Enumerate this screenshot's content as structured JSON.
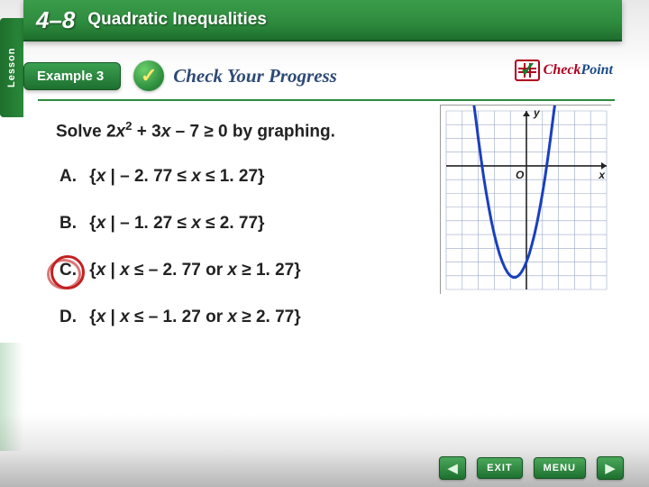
{
  "lesson": {
    "tab": "Lesson",
    "number": "4–8",
    "title": "Quadratic Inequalities"
  },
  "example": {
    "label": "Example 3",
    "cyp": "Check Your Progress"
  },
  "checkpoint": {
    "check": "Check",
    "point": "Point"
  },
  "question": {
    "prefix": "Solve 2",
    "var1": "x",
    "exp": "2",
    "mid": " + 3",
    "var2": "x",
    "suffix": " – 7 ≥ 0 by graphing."
  },
  "options": [
    {
      "letter": "A.",
      "pre": "{",
      "v1": "x",
      "mid": " | – 2. 77 ≤ ",
      "v2": "x",
      "post": " ≤ 1. 27}",
      "circled": false
    },
    {
      "letter": "B.",
      "pre": "{",
      "v1": "x",
      "mid": " | – 1. 27 ≤ ",
      "v2": "x",
      "post": " ≤ 2. 77}",
      "circled": false
    },
    {
      "letter": "C.",
      "pre": "{",
      "v1": "x",
      "mid": " | ",
      "v2": "x",
      "mid2": " ≤ – 2. 77 or ",
      "v3": "x",
      "post": " ≥ 1. 27}",
      "circled": true
    },
    {
      "letter": "D.",
      "pre": "{",
      "v1": "x",
      "mid": " | ",
      "v2": "x",
      "mid2": " ≤ – 1. 27 or ",
      "v3": "x",
      "post": " ≥ 2. 77}",
      "circled": false
    }
  ],
  "graph": {
    "xlabel": "x",
    "ylabel": "y",
    "origin": "O",
    "curve_color": "#1a3fbf",
    "curve_width": 3,
    "axis_color": "#222222",
    "grid_color": "#9aa7c4",
    "bg": "#ffffff",
    "xlim": [
      -5,
      5
    ],
    "ylim": [
      -9,
      4
    ],
    "xstep": 1,
    "ystep": 1,
    "a": 2,
    "b": 3,
    "c": -7,
    "samples": 60
  },
  "nav": {
    "back": "◀",
    "exit": "EXIT",
    "menu": "MENU",
    "fwd": "▶"
  },
  "colors": {
    "green": "#2d8a3d",
    "circle": "#c22020"
  }
}
